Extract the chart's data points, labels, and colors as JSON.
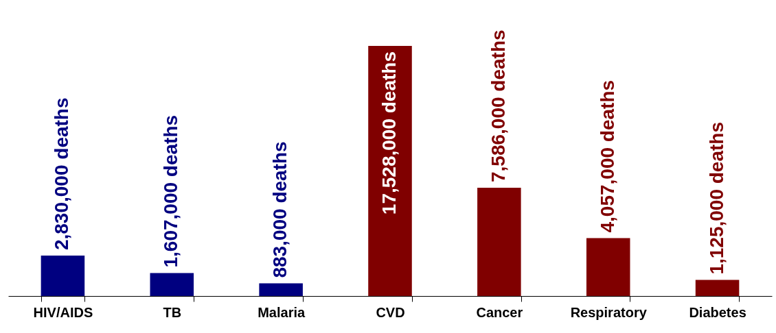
{
  "chart_data": {
    "type": "bar",
    "categories": [
      "HIV/AIDS",
      "TB",
      "Malaria",
      "CVD",
      "Cancer",
      "Respiratory",
      "Diabetes"
    ],
    "values": [
      2830000,
      1607000,
      883000,
      17528000,
      7586000,
      4057000,
      1125000
    ],
    "colors": [
      "#000080",
      "#000080",
      "#000080",
      "#800000",
      "#800000",
      "#800000",
      "#800000"
    ],
    "value_labels": [
      "2,830,000 deaths",
      "1,607,000 deaths",
      "883,000 deaths",
      "17,528,000 deaths",
      "7,586,000 deaths",
      "4,057,000 deaths",
      "1,125,000 deaths"
    ]
  }
}
